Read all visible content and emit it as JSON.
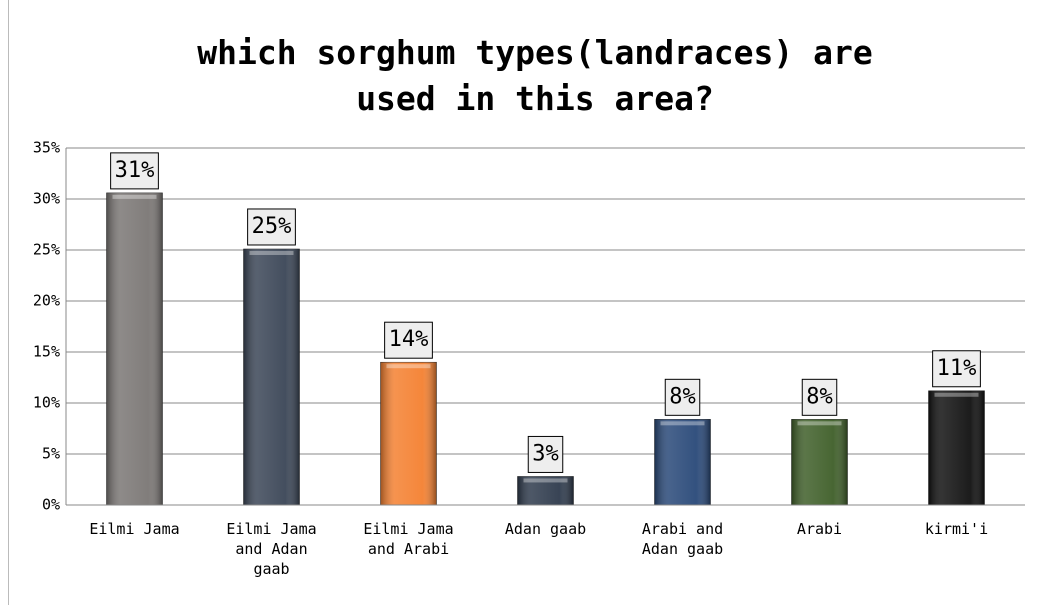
{
  "chart_data": {
    "type": "bar",
    "title": "which sorghum types(landraces) are used in this area?",
    "categories": [
      "Eilmi Jama",
      "Eilmi Jama and Adan gaab",
      "Eilmi Jama and Arabi",
      "Adan gaab",
      "Arabi and Adan gaab",
      "Arabi",
      "kirmi'i"
    ],
    "values": [
      30.6,
      25.1,
      14.0,
      2.8,
      8.4,
      8.4,
      11.2
    ],
    "value_labels": [
      "31%",
      "25%",
      "14%",
      "3%",
      "8%",
      "8%",
      "11%"
    ],
    "colors": [
      "#7a7674",
      "#3a4556",
      "#f48030",
      "#2e3a4c",
      "#284878",
      "#3e5e28",
      "#101010"
    ],
    "ylim": [
      0,
      35
    ],
    "yticks": [
      {
        "value": 0,
        "label": "0%"
      },
      {
        "value": 5,
        "label": "5%"
      },
      {
        "value": 10,
        "label": "10%"
      },
      {
        "value": 15,
        "label": "15%"
      },
      {
        "value": 20,
        "label": "20%"
      },
      {
        "value": 25,
        "label": "25%"
      },
      {
        "value": 30,
        "label": "30%"
      },
      {
        "value": 35,
        "label": "35%"
      }
    ],
    "grid": true
  }
}
